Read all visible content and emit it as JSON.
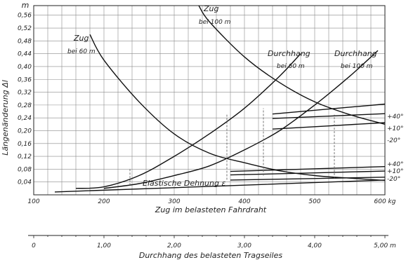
{
  "chart_data": {
    "type": "line",
    "ylabel": "Längenänderung Δl",
    "y_unit": "m",
    "y_ticks": [
      "0,04",
      "0,08",
      "0,12",
      "0,16",
      "0,20",
      "0,24",
      "0,28",
      "0,32",
      "0,36",
      "0,40",
      "0,44",
      "0,48",
      "0,52",
      "0,56"
    ],
    "ylim": [
      0,
      0.59
    ],
    "x_axis_primary": {
      "label": "Zug im belasteten Fahrdraht",
      "unit": "kg",
      "range": [
        100,
        600
      ],
      "ticks": [
        "100",
        "200",
        "300",
        "400",
        "500",
        "600 kg"
      ]
    },
    "x_axis_secondary": {
      "label": "Durchhang des belasteten Tragseiles",
      "unit": "m",
      "range": [
        0,
        5
      ],
      "ticks": [
        "0",
        "1,00",
        "2,00",
        "3,00",
        "4,00",
        "5,00 m"
      ]
    },
    "series": [
      {
        "name": "Zug bei 60 m",
        "axis": "Zug",
        "x": [
          180,
          200,
          250,
          300,
          350,
          400,
          450,
          500,
          550,
          600
        ],
        "y": [
          0.5,
          0.42,
          0.29,
          0.19,
          0.13,
          0.1,
          0.075,
          0.06,
          0.052,
          0.045
        ]
      },
      {
        "name": "Zug bei 100 m",
        "axis": "Zug",
        "x": [
          335,
          350,
          400,
          450,
          500,
          550,
          600
        ],
        "y": [
          0.59,
          0.54,
          0.43,
          0.35,
          0.29,
          0.25,
          0.22
        ]
      },
      {
        "name": "Durchhang bei 60 m",
        "axis": "Durchhang",
        "x": [
          0.6,
          1.0,
          1.5,
          2.0,
          2.5,
          3.0,
          3.5,
          3.8
        ],
        "y": [
          0.02,
          0.025,
          0.06,
          0.12,
          0.19,
          0.27,
          0.37,
          0.44
        ]
      },
      {
        "name": "Durchhang bei 100 m",
        "axis": "Durchhang",
        "x": [
          1.0,
          1.5,
          2.0,
          2.5,
          3.0,
          3.5,
          4.0,
          4.5,
          4.9
        ],
        "y": [
          0.02,
          0.035,
          0.06,
          0.09,
          0.14,
          0.2,
          0.28,
          0.37,
          0.45
        ]
      },
      {
        "name": "+40°",
        "axis": "Zug",
        "x": [
          440,
          600
        ],
        "y": [
          0.252,
          0.283
        ]
      },
      {
        "name": "+10°",
        "axis": "Zug",
        "x": [
          440,
          600
        ],
        "y": [
          0.238,
          0.253
        ]
      },
      {
        "name": "-20°",
        "axis": "Zug",
        "x": [
          440,
          600
        ],
        "y": [
          0.205,
          0.225
        ]
      },
      {
        "name": "+40°",
        "axis": "Zug",
        "x": [
          380,
          600
        ],
        "y": [
          0.073,
          0.088
        ]
      },
      {
        "name": "+10°",
        "axis": "Zug",
        "x": [
          380,
          600
        ],
        "y": [
          0.062,
          0.074
        ]
      },
      {
        "name": "-20°",
        "axis": "Zug",
        "x": [
          380,
          600
        ],
        "y": [
          0.046,
          0.055
        ]
      },
      {
        "name": "Elastische Dehnung",
        "axis": "Zug",
        "x": [
          130,
          600
        ],
        "y": [
          0.009,
          0.046
        ]
      }
    ],
    "annotations": {
      "zug60_a": "Zug",
      "zug60_b": "bei 60 m",
      "zug100_a": "Zug",
      "zug100_b": "bei 100 m",
      "dh60_a": "Durchhang",
      "dh60_b": "bei 60 m",
      "dh100_a": "Durchhang",
      "dh100_b": "bei 100 m",
      "elastisch": "Elastische Dehnung ε",
      "t_upper_1": "+40°",
      "t_upper_2": "+10°",
      "t_upper_3": "-20°",
      "t_lower_1": "+40°",
      "t_lower_2": "+10°",
      "t_lower_3": "-20°"
    },
    "grid": true
  }
}
